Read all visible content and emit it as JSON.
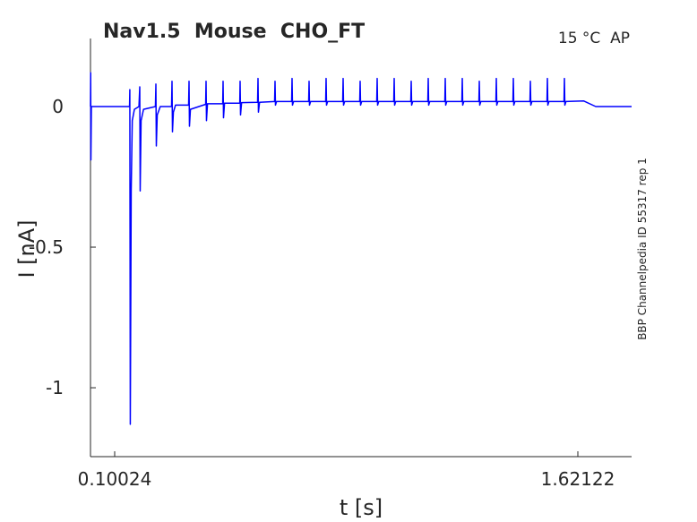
{
  "chart_data": {
    "type": "line",
    "title": "Nav1.5  Mouse  CHO_FT",
    "xlabel": "t [s]",
    "ylabel": "I [nA]",
    "annotations": [
      "15 °C  AP",
      "BBP Channelpedia ID 55317 rep 1"
    ],
    "xlim": [
      0.0208,
      1.7977
    ],
    "ylim": [
      -1.245,
      0.242
    ],
    "xticks": [
      0.10024,
      1.62122
    ],
    "yticks": [
      -1,
      -0.5,
      0
    ],
    "x": [
      0.0208,
      0.0215,
      0.0222,
      0.0237,
      0.149,
      0.15,
      0.1515,
      0.1545,
      0.158,
      0.165,
      0.18,
      0.1826,
      0.184,
      0.187,
      0.195,
      0.234,
      0.2356,
      0.237,
      0.24,
      0.25,
      0.287,
      0.2885,
      0.29,
      0.293,
      0.3,
      0.343,
      0.3444,
      0.3458,
      0.349,
      0.399,
      0.4003,
      0.4017,
      0.405,
      0.455,
      0.4562,
      0.4576,
      0.461,
      0.511,
      0.5121,
      0.5135,
      0.517,
      0.5695,
      0.5709,
      0.5723,
      0.576,
      0.6254,
      0.6268,
      0.6282,
      0.6318,
      0.6813,
      0.6827,
      0.6841,
      0.6877,
      0.7372,
      0.7386,
      0.74,
      0.7436,
      0.7931,
      0.7945,
      0.7959,
      0.7995,
      0.849,
      0.8504,
      0.8518,
      0.8554,
      0.9049,
      0.9063,
      0.9077,
      0.9113,
      0.9608,
      0.9622,
      0.9636,
      0.9672,
      1.0167,
      1.0181,
      1.0195,
      1.0231,
      1.0726,
      1.074,
      1.0754,
      1.079,
      1.1285,
      1.1299,
      1.1313,
      1.1349,
      1.1844,
      1.1858,
      1.1872,
      1.1908,
      1.2403,
      1.2417,
      1.2431,
      1.2467,
      1.2962,
      1.2976,
      1.299,
      1.3026,
      1.3521,
      1.3535,
      1.3549,
      1.3585,
      1.408,
      1.4094,
      1.4108,
      1.4144,
      1.4639,
      1.4653,
      1.4667,
      1.4703,
      1.5198,
      1.5212,
      1.5226,
      1.5262,
      1.5757,
      1.5771,
      1.5785,
      1.5821,
      1.64,
      1.68,
      1.7977
    ],
    "series": [
      {
        "color": "#0000ff",
        "values": [
          0,
          0.12,
          -0.19,
          0,
          0,
          0.06,
          -1.13,
          -0.3,
          -0.05,
          -0.01,
          0,
          0.07,
          -0.3,
          -0.05,
          -0.01,
          0,
          0.08,
          -0.14,
          -0.03,
          0,
          0,
          0.09,
          -0.09,
          -0.02,
          0.005,
          0.005,
          0.09,
          -0.07,
          -0.01,
          0.008,
          0.09,
          -0.05,
          0.01,
          0.01,
          0.09,
          -0.04,
          0.012,
          0.012,
          0.09,
          -0.03,
          0.014,
          0.015,
          0.1,
          -0.02,
          0.015,
          0.018,
          0.09,
          0.005,
          0.018,
          0.018,
          0.1,
          0.005,
          0.018,
          0.018,
          0.09,
          0.005,
          0.018,
          0.018,
          0.1,
          0.005,
          0.018,
          0.018,
          0.1,
          0.005,
          0.018,
          0.018,
          0.09,
          0.005,
          0.018,
          0.018,
          0.1,
          0.005,
          0.018,
          0.018,
          0.1,
          0.005,
          0.018,
          0.018,
          0.09,
          0.005,
          0.018,
          0.018,
          0.1,
          0.005,
          0.018,
          0.018,
          0.1,
          0.005,
          0.018,
          0.018,
          0.1,
          0.005,
          0.018,
          0.018,
          0.09,
          0.005,
          0.018,
          0.018,
          0.1,
          0.005,
          0.018,
          0.018,
          0.1,
          0.005,
          0.018,
          0.018,
          0.09,
          0.005,
          0.018,
          0.018,
          0.1,
          0.005,
          0.018,
          0.018,
          0.1,
          0.005,
          0.018,
          0.02,
          0,
          0
        ]
      }
    ]
  }
}
